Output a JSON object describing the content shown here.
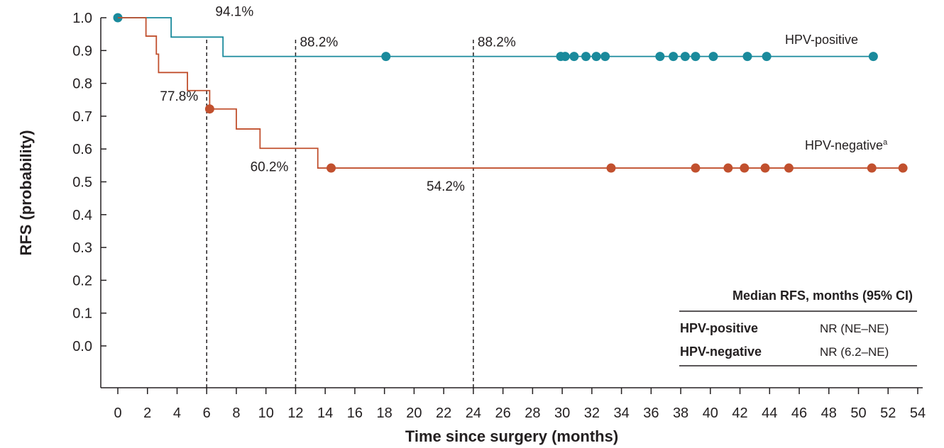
{
  "chart_data": {
    "type": "line",
    "subtype": "kaplan-meier",
    "title": "",
    "xlabel": "Time since surgery (months)",
    "ylabel": "RFS (probability)",
    "xlim": [
      0,
      54
    ],
    "ylim": [
      0,
      1
    ],
    "x_ticks": [
      "0",
      "2",
      "4",
      "6",
      "8",
      "10",
      "12",
      "14",
      "16",
      "18",
      "20",
      "22",
      "24",
      "26",
      "28",
      "30",
      "32",
      "34",
      "36",
      "38",
      "40",
      "42",
      "44",
      "46",
      "48",
      "50",
      "52",
      "54"
    ],
    "y_ticks": [
      "0.0",
      "0.1",
      "0.2",
      "0.3",
      "0.4",
      "0.5",
      "0.6",
      "0.7",
      "0.8",
      "0.9",
      "1.0"
    ],
    "grid": false,
    "reference_lines_x": [
      6,
      12,
      24
    ],
    "series": [
      {
        "name": "HPV-positive",
        "color": "#1a8a9c",
        "steps": [
          [
            0,
            1.0
          ],
          [
            3.6,
            0.941
          ],
          [
            7.1,
            0.882
          ],
          [
            51.0,
            0.882
          ]
        ],
        "censored": [
          0,
          18.1,
          29.9,
          30.2,
          30.8,
          31.6,
          32.3,
          32.9,
          36.6,
          37.5,
          38.3,
          39.0,
          40.2,
          42.5,
          43.8,
          51.0
        ]
      },
      {
        "name": "HPV-negative",
        "label_suffix": "a",
        "color": "#c1502e",
        "steps": [
          [
            0,
            1.0
          ],
          [
            1.9,
            0.944
          ],
          [
            2.6,
            0.889
          ],
          [
            2.75,
            0.833
          ],
          [
            4.7,
            0.778
          ],
          [
            6.2,
            0.722
          ],
          [
            8.0,
            0.661
          ],
          [
            9.6,
            0.602
          ],
          [
            13.5,
            0.542
          ],
          [
            53.0,
            0.542
          ]
        ],
        "censored": [
          6.2,
          14.4,
          33.3,
          39.0,
          41.2,
          42.3,
          43.7,
          45.3,
          50.9,
          53.0
        ]
      }
    ],
    "annotations": [
      {
        "text": "94.1%",
        "x": 6.2,
        "y": 0.941
      },
      {
        "text": "88.2%",
        "x": 12,
        "y": 0.882
      },
      {
        "text": "88.2%",
        "x": 24,
        "y": 0.882
      },
      {
        "text": "77.8%",
        "x": 6,
        "y": 0.778
      },
      {
        "text": "60.2%",
        "x": 12,
        "y": 0.602
      },
      {
        "text": "54.2%",
        "x": 24,
        "y": 0.542
      }
    ],
    "table": {
      "header": "Median RFS, months (95% CI)",
      "rows": [
        {
          "name": "HPV-positive",
          "value": "NR (NE–NE)"
        },
        {
          "name": "HPV-negative",
          "value": "NR (6.2–NE)"
        }
      ]
    }
  }
}
